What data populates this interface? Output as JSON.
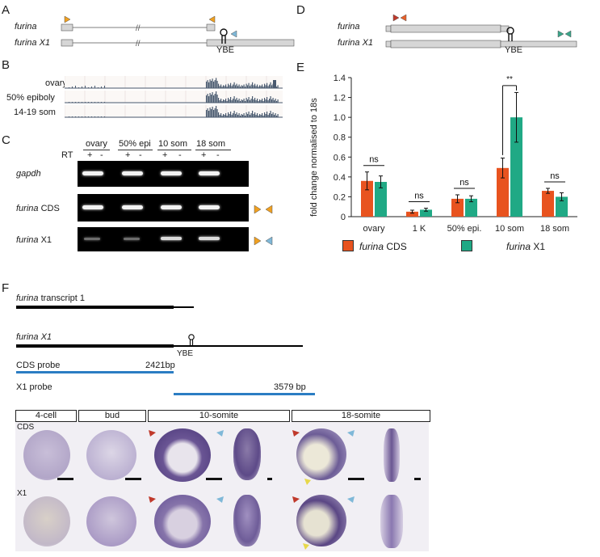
{
  "panels": {
    "A": "A",
    "B": "B",
    "C": "C",
    "D": "D",
    "E": "E",
    "F": "F"
  },
  "panelA": {
    "row1": "furina",
    "row2": "furina X1",
    "ybe": "YBE"
  },
  "panelB": {
    "tracks": [
      "ovary",
      "50% epiboly",
      "14-19 som"
    ]
  },
  "panelC": {
    "columns": [
      "ovary",
      "50% epi",
      "10 som",
      "18 som"
    ],
    "rt_label": "RT",
    "rt_signs": [
      "+",
      "-",
      "+",
      "-",
      "+",
      "-",
      "+",
      "-"
    ],
    "rows": [
      {
        "label": "gapdh",
        "label_suffix": ""
      },
      {
        "label": "furina",
        "label_suffix": " CDS"
      },
      {
        "label": "furina",
        "label_suffix": " X1"
      }
    ]
  },
  "panelD": {
    "row1": "furina",
    "row2": "furina X1",
    "ybe": "YBE"
  },
  "colors": {
    "cds": "#e8531f",
    "x1": "#20a985",
    "orange_arrow": "#f0a020",
    "blue_arrow": "#7fb8d8",
    "red_arrow": "#c0392b",
    "teal_arrow": "#3aa58a",
    "track": "#4a5a70",
    "probe": "#2b7dc3"
  },
  "chart_data": {
    "type": "bar",
    "categories": [
      "ovary",
      "1 K",
      "50% epi.",
      "10 som",
      "18 som"
    ],
    "series": [
      {
        "name": "furina CDS",
        "values": [
          0.36,
          0.05,
          0.18,
          0.49,
          0.26
        ],
        "errors": [
          0.09,
          0.015,
          0.04,
          0.1,
          0.025
        ]
      },
      {
        "name": "furina X1",
        "values": [
          0.35,
          0.07,
          0.18,
          1.0,
          0.2
        ],
        "errors": [
          0.06,
          0.015,
          0.03,
          0.25,
          0.04
        ]
      }
    ],
    "ylabel": "fold change normalised to 18s",
    "ylim": [
      0,
      1.4
    ],
    "yticks": [
      "0",
      "0.2",
      "0.4",
      "0.6",
      "0.8",
      "1.0",
      "1.2",
      "1.4"
    ],
    "significance": [
      "ns",
      "ns",
      "ns",
      "**",
      "ns"
    ],
    "legend": [
      {
        "italic": "furina",
        "rest": " CDS"
      },
      {
        "italic": "furina",
        "rest": " X1"
      }
    ]
  },
  "panelF": {
    "t1": "furina",
    "t1_suffix": " transcript 1",
    "t2": "furina X1",
    "ybe": "YBE",
    "cds_probe": "CDS probe",
    "cds_len": "2421bp",
    "x1_probe": "X1 probe",
    "x1_len": "3579 bp",
    "stages": [
      "4-cell",
      "bud",
      "10-somite",
      "18-somite"
    ],
    "row_labels": [
      "CDS",
      "X1"
    ]
  }
}
